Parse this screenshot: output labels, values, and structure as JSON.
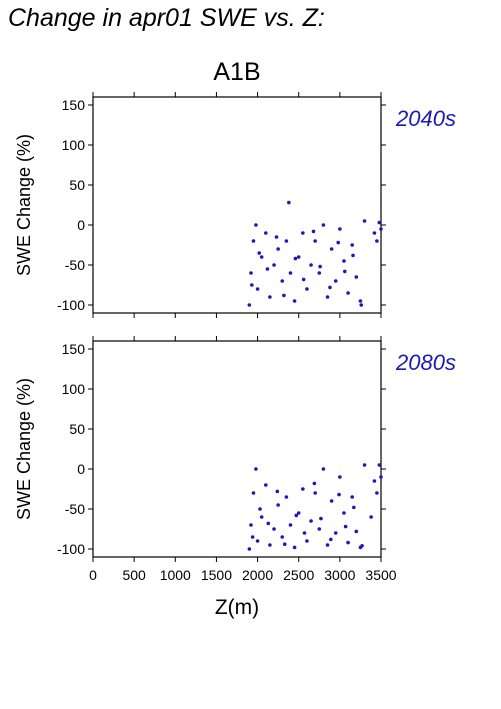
{
  "figure": {
    "title": "Change in apr01 SWE vs. Z:",
    "scenario": "A1B",
    "point_color": "#1a1ab4"
  },
  "chart_data": [
    {
      "type": "scatter",
      "panel_label": "2040s",
      "xlabel": "Z(m)",
      "ylabel": "SWE Change (%)",
      "xlim": [
        0,
        3500
      ],
      "ylim": [
        -110,
        160
      ],
      "xticks": [
        0,
        500,
        1000,
        1500,
        2000,
        2500,
        3000,
        3500
      ],
      "yticks": [
        -100,
        -50,
        0,
        50,
        100,
        150
      ],
      "grid": false,
      "x": [
        1900,
        1920,
        1950,
        1980,
        2000,
        2050,
        2100,
        2150,
        2200,
        2250,
        2300,
        2350,
        2400,
        2450,
        2500,
        2550,
        2600,
        2650,
        2700,
        2750,
        2800,
        2850,
        2900,
        2950,
        3000,
        3050,
        3100,
        3150,
        3200,
        3250,
        3300,
        3420,
        3450,
        3480,
        3500,
        2380,
        1930,
        2020,
        2120,
        2230,
        2320,
        2460,
        2560,
        2680,
        2760,
        2880,
        2980,
        3060,
        3160,
        3260
      ],
      "y": [
        -100,
        -60,
        -20,
        0,
        -80,
        -40,
        -10,
        -90,
        -50,
        -30,
        -70,
        -20,
        -60,
        -95,
        -40,
        -10,
        -80,
        -50,
        -20,
        -60,
        0,
        -90,
        -30,
        -70,
        -5,
        -45,
        -85,
        -25,
        -65,
        -95,
        5,
        -10,
        -20,
        3,
        -5,
        28,
        -75,
        -35,
        -55,
        -15,
        -88,
        -42,
        -68,
        -8,
        -52,
        -78,
        -22,
        -58,
        -38,
        -100
      ]
    },
    {
      "type": "scatter",
      "panel_label": "2080s",
      "xlabel": "Z(m)",
      "ylabel": "SWE Change (%)",
      "xlim": [
        0,
        3500
      ],
      "ylim": [
        -110,
        160
      ],
      "xticks": [
        0,
        500,
        1000,
        1500,
        2000,
        2500,
        3000,
        3500
      ],
      "yticks": [
        -100,
        -50,
        0,
        50,
        100,
        150
      ],
      "grid": false,
      "x": [
        1900,
        1920,
        1950,
        1980,
        2000,
        2050,
        2100,
        2150,
        2200,
        2250,
        2300,
        2350,
        2400,
        2450,
        2500,
        2550,
        2600,
        2650,
        2700,
        2750,
        2800,
        2850,
        2900,
        2950,
        3000,
        3050,
        3100,
        3150,
        3200,
        3250,
        3300,
        3420,
        3450,
        3480,
        3500,
        1940,
        2030,
        2130,
        2240,
        2330,
        2470,
        2570,
        2690,
        2770,
        2890,
        2990,
        3070,
        3170,
        3270,
        3380
      ],
      "y": [
        -100,
        -70,
        -30,
        0,
        -90,
        -60,
        -20,
        -95,
        -75,
        -45,
        -85,
        -35,
        -70,
        -98,
        -55,
        -25,
        -90,
        -65,
        -30,
        -75,
        0,
        -95,
        -40,
        -80,
        -10,
        -55,
        -92,
        -35,
        -78,
        -98,
        5,
        -15,
        -30,
        5,
        -10,
        -85,
        -50,
        -68,
        -28,
        -94,
        -58,
        -80,
        -18,
        -62,
        -88,
        -32,
        -72,
        -48,
        -96,
        -60
      ]
    }
  ]
}
